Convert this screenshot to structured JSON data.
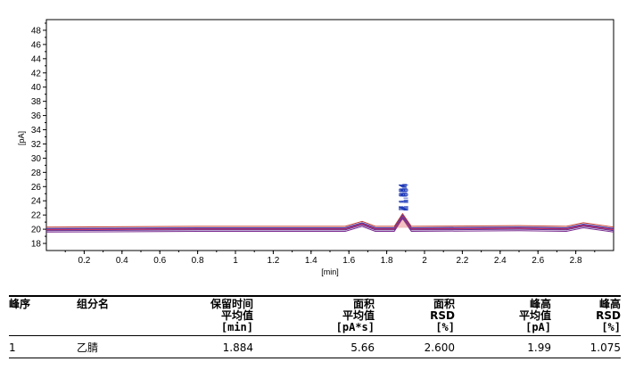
{
  "chart_data": {
    "type": "line",
    "title": "",
    "xlabel": "[min]",
    "ylabel": "[pA]",
    "xlim": [
      0.0,
      3.0
    ],
    "ylim": [
      17,
      49.5
    ],
    "x_ticks": [
      0.2,
      0.4,
      0.6,
      0.8,
      1,
      1.2,
      1.4,
      1.6,
      1.8,
      2,
      2.2,
      2.4,
      2.6,
      2.8
    ],
    "y_ticks": [
      18,
      20,
      22,
      24,
      26,
      28,
      30,
      32,
      34,
      36,
      38,
      40,
      42,
      44,
      46,
      48
    ],
    "series_colors": [
      "#c0392b",
      "#2b3fbf",
      "#8e1f6e",
      "#d0406a",
      "#5a2d91",
      "#7a2b8f"
    ],
    "series": [
      {
        "values": [
          [
            0.0,
            20.3
          ],
          [
            0.8,
            20.4
          ],
          [
            1.58,
            20.4
          ],
          [
            1.67,
            21.1
          ],
          [
            1.74,
            20.4
          ],
          [
            1.84,
            20.4
          ],
          [
            1.884,
            22.2
          ],
          [
            1.93,
            20.4
          ],
          [
            2.5,
            20.5
          ],
          [
            2.75,
            20.4
          ],
          [
            2.84,
            20.9
          ],
          [
            3.0,
            20.3
          ]
        ]
      },
      {
        "values": [
          [
            0.0,
            20.1
          ],
          [
            0.8,
            20.2
          ],
          [
            1.58,
            20.2
          ],
          [
            1.67,
            20.9
          ],
          [
            1.74,
            20.2
          ],
          [
            1.84,
            20.2
          ],
          [
            1.884,
            22.0
          ],
          [
            1.93,
            20.2
          ],
          [
            2.5,
            20.3
          ],
          [
            2.75,
            20.2
          ],
          [
            2.84,
            20.7
          ],
          [
            3.0,
            20.1
          ]
        ]
      },
      {
        "values": [
          [
            0.0,
            20.0
          ],
          [
            0.8,
            20.1
          ],
          [
            1.58,
            20.1
          ],
          [
            1.67,
            20.8
          ],
          [
            1.74,
            20.1
          ],
          [
            1.84,
            20.1
          ],
          [
            1.884,
            21.9
          ],
          [
            1.93,
            20.1
          ],
          [
            2.5,
            20.2
          ],
          [
            2.75,
            20.1
          ],
          [
            2.84,
            20.6
          ],
          [
            3.0,
            20.0
          ]
        ]
      },
      {
        "values": [
          [
            0.0,
            19.9
          ],
          [
            0.8,
            20.0
          ],
          [
            1.58,
            20.0
          ],
          [
            1.67,
            20.7
          ],
          [
            1.74,
            20.0
          ],
          [
            1.84,
            20.0
          ],
          [
            1.884,
            21.8
          ],
          [
            1.93,
            20.0
          ],
          [
            2.5,
            20.1
          ],
          [
            2.75,
            20.0
          ],
          [
            2.84,
            20.5
          ],
          [
            3.0,
            19.9
          ]
        ]
      },
      {
        "values": [
          [
            0.0,
            19.8
          ],
          [
            0.8,
            19.9
          ],
          [
            1.58,
            19.9
          ],
          [
            1.67,
            20.6
          ],
          [
            1.74,
            19.9
          ],
          [
            1.84,
            19.9
          ],
          [
            1.884,
            21.7
          ],
          [
            1.93,
            19.9
          ],
          [
            2.5,
            20.0
          ],
          [
            2.75,
            19.9
          ],
          [
            2.84,
            20.4
          ],
          [
            3.0,
            19.8
          ]
        ]
      },
      {
        "values": [
          [
            0.0,
            19.6
          ],
          [
            0.8,
            19.7
          ],
          [
            1.58,
            19.7
          ],
          [
            1.67,
            20.4
          ],
          [
            1.74,
            19.7
          ],
          [
            1.84,
            19.7
          ],
          [
            1.884,
            21.5
          ],
          [
            1.93,
            19.7
          ],
          [
            2.5,
            19.8
          ],
          [
            2.75,
            19.7
          ],
          [
            2.84,
            20.2
          ],
          [
            3.0,
            19.6
          ]
        ]
      }
    ],
    "peak_labels": [
      {
        "x": 1.884,
        "text": "Z 1.884"
      },
      {
        "x": 1.889,
        "text": "Z 1.884"
      },
      {
        "x": 1.894,
        "text": "Z 1.884"
      },
      {
        "x": 1.899,
        "text": "Z 1.884"
      },
      {
        "x": 1.904,
        "text": "Z 1.884"
      }
    ]
  },
  "table": {
    "headers": {
      "peak_no": [
        "峰序"
      ],
      "component": [
        "组分名"
      ],
      "rt": [
        "保留时间",
        "平均值",
        "[min]"
      ],
      "area": [
        "面积",
        "平均值",
        "[pA*s]"
      ],
      "area_rsd": [
        "面积",
        "RSD",
        "[%]"
      ],
      "height": [
        "峰高",
        "平均值",
        "[pA]"
      ],
      "height_rsd": [
        "峰高",
        "RSD",
        "[%]"
      ]
    },
    "rows": [
      {
        "peak_no": "1",
        "component": "乙腈",
        "rt": "1.884",
        "area": "5.66",
        "area_rsd": "2.600",
        "height": "1.99",
        "height_rsd": "1.075"
      }
    ]
  }
}
